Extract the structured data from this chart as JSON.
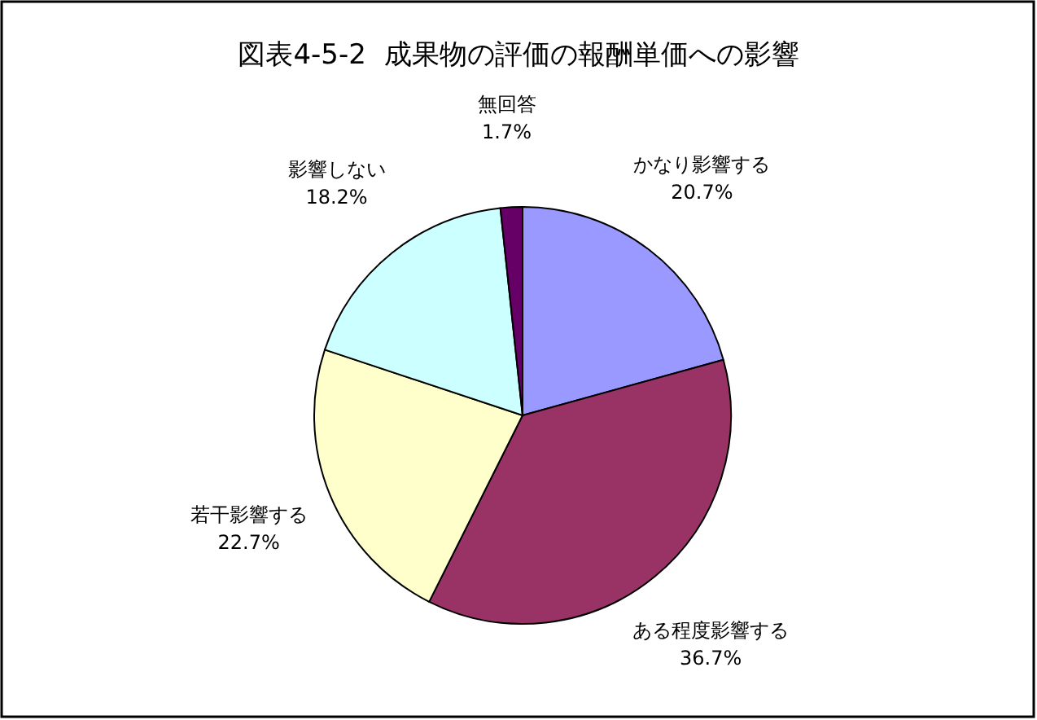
{
  "chart_data": {
    "type": "pie",
    "title": "図表4-5-2  成果物の評価の報酬単価への影響",
    "categories": [
      "かなり影響する",
      "ある程度影響する",
      "若干影響する",
      "影響しない",
      "無回答"
    ],
    "values": [
      20.7,
      36.7,
      22.7,
      18.2,
      1.7
    ],
    "colors": [
      "#9999ff",
      "#993366",
      "#ffffcc",
      "#ccffff",
      "#660066"
    ],
    "value_labels": [
      "20.7%",
      "36.7%",
      "22.7%",
      "18.2%",
      "1.7%"
    ]
  }
}
